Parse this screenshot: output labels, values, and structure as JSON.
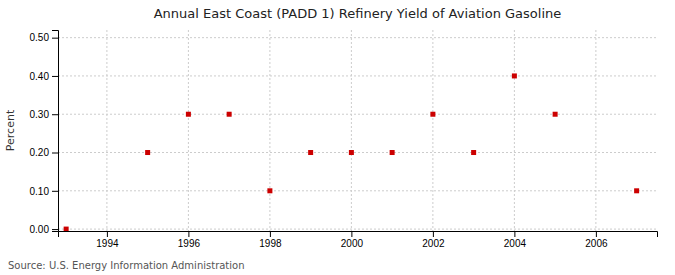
{
  "chart_data": {
    "type": "scatter",
    "title": "Annual East Coast (PADD 1) Refinery Yield of Aviation Gasoline",
    "ylabel": "Percent",
    "source": "Source: U.S. Energy Information Administration",
    "x": [
      1993,
      1995,
      1996,
      1997,
      1998,
      1999,
      2000,
      2001,
      2002,
      2003,
      2004,
      2005,
      2007
    ],
    "values": [
      0.0,
      0.2,
      0.3,
      0.3,
      0.1,
      0.2,
      0.2,
      0.2,
      0.3,
      0.2,
      0.4,
      0.3,
      0.1
    ],
    "color": "#cc0000",
    "marker": "square",
    "xlim": [
      1992.8,
      2007.5
    ],
    "ylim": [
      -0.005,
      0.52
    ],
    "xticks": [
      1994,
      1996,
      1998,
      2000,
      2002,
      2004,
      2006
    ],
    "yticks": [
      {
        "value": 0.0,
        "label": "0.00"
      },
      {
        "value": 0.1,
        "label": "0.10"
      },
      {
        "value": 0.2,
        "label": "0.20"
      },
      {
        "value": 0.3,
        "label": "0.30"
      },
      {
        "value": 0.4,
        "label": "0.40"
      },
      {
        "value": 0.5,
        "label": "0.50"
      }
    ],
    "grid": true
  }
}
